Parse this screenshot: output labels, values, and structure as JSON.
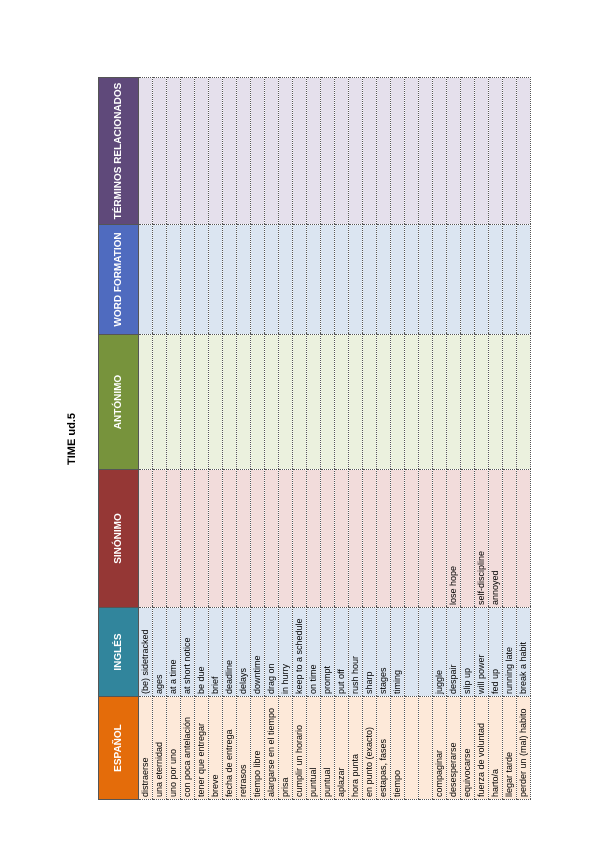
{
  "title": "TIME ud.5",
  "table": {
    "headers": [
      "ESPAÑOL",
      "INGLÉS",
      "SINÓNIMO",
      "ANTÓNIMO",
      "WORD FORMATION",
      "TÉRMINOS RELACIONADOS"
    ],
    "rows": [
      [
        "distraerse",
        "(be) sidetracked",
        null,
        null,
        null,
        null
      ],
      [
        "una eternidad",
        "ages",
        null,
        null,
        null,
        null
      ],
      [
        "uno por uno",
        "at a time",
        null,
        null,
        null,
        null
      ],
      [
        "con poca antelación",
        "at short notice",
        null,
        null,
        null,
        null
      ],
      [
        "tener que entregar",
        "be due",
        null,
        null,
        null,
        null
      ],
      [
        "breve",
        "brief",
        null,
        null,
        null,
        null
      ],
      [
        "fecha de entrega",
        "deadline",
        null,
        null,
        null,
        null
      ],
      [
        "retrasos",
        "delays",
        null,
        null,
        null,
        null
      ],
      [
        "tiempo libre",
        "downtime",
        null,
        null,
        null,
        null
      ],
      [
        "alargarse en el tiempo",
        "drag on",
        null,
        null,
        null,
        null
      ],
      [
        "prisa",
        "in hurry",
        null,
        null,
        null,
        null
      ],
      [
        "cumplir un horario",
        "keep to a schedule",
        null,
        null,
        null,
        null
      ],
      [
        "puntual",
        "on time",
        null,
        null,
        null,
        null
      ],
      [
        "puntual",
        "prompt",
        null,
        null,
        null,
        null
      ],
      [
        "aplazar",
        "put off",
        null,
        null,
        null,
        null
      ],
      [
        "hora punta",
        "rush hour",
        null,
        null,
        null,
        null
      ],
      [
        "en punto (exacto)",
        "sharp",
        null,
        null,
        null,
        null
      ],
      [
        "estapas, fases",
        "stages",
        null,
        null,
        null,
        null
      ],
      [
        "tiempo",
        "timing",
        null,
        null,
        null,
        null
      ],
      [
        null,
        null,
        null,
        null,
        null,
        null
      ],
      [
        null,
        null,
        null,
        null,
        null,
        null
      ],
      [
        "compaginar",
        "juggle",
        null,
        null,
        null,
        null
      ],
      [
        "desesperarse",
        "despair",
        "lose hope",
        null,
        null,
        null
      ],
      [
        "equivocarse",
        "slip up",
        null,
        null,
        null,
        null
      ],
      [
        "fuerza de voluntad",
        "will power",
        "self-discipline",
        null,
        null,
        null
      ],
      [
        "harto/a",
        "fed up",
        "annoyed",
        null,
        null,
        null
      ],
      [
        "llegar tarde",
        "running late",
        null,
        null,
        null,
        null
      ],
      [
        "perder un (mal) habito",
        "break a habit",
        null,
        null,
        null,
        null
      ]
    ]
  }
}
